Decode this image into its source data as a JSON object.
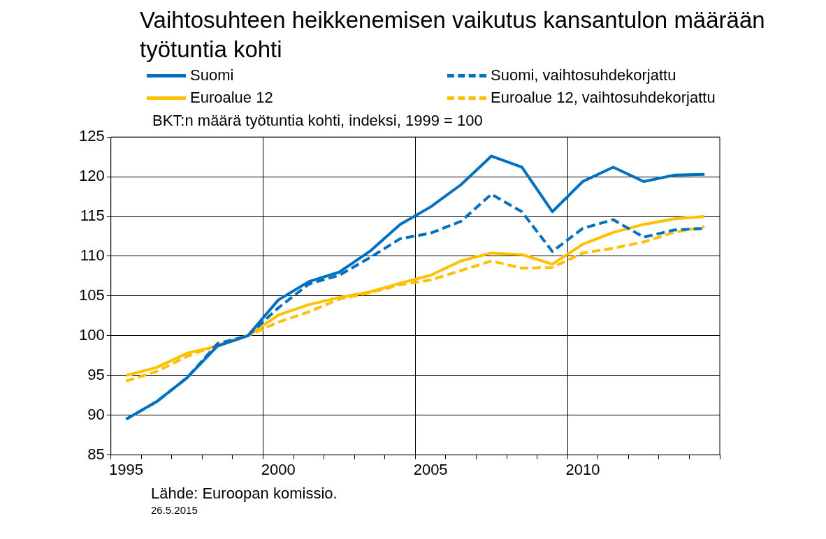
{
  "chart_data": {
    "type": "line",
    "title": "Vaihtosuhteen heikkenemisen vaikutus kansantulon määrään työtuntia kohti",
    "ylabel": "BKT:n määrä työtuntia kohti, indeksi, 1999 = 100",
    "categories": [
      "1995",
      null,
      null,
      null,
      null,
      "2000",
      null,
      null,
      null,
      null,
      "2005",
      null,
      null,
      null,
      null,
      "2010",
      null,
      null,
      null,
      null
    ],
    "series": [
      {
        "name": "Suomi",
        "color": "#0070c0",
        "line_style": "solid",
        "values": [
          89.5,
          91.7,
          94.7,
          98.7,
          100,
          104.5,
          106.8,
          108,
          110.6,
          114,
          116.2,
          119,
          122.6,
          121.2,
          115.6,
          119.4,
          121.2,
          119.4,
          120.2,
          120.3
        ]
      },
      {
        "name": "Suomi, vaihtosuhdekorjattu",
        "color": "#0070c0",
        "line_style": "dashed",
        "values": [
          89.5,
          91.7,
          94.7,
          99,
          100,
          103.5,
          106.5,
          107.6,
          109.8,
          112.2,
          112.9,
          114.4,
          117.8,
          115.6,
          110.6,
          113.5,
          114.6,
          112.4,
          113.3,
          113.5
        ]
      },
      {
        "name": "Euroalue 12",
        "color": "#ffc000",
        "line_style": "solid",
        "values": [
          95,
          96,
          97.8,
          98.7,
          100,
          102.6,
          103.9,
          104.8,
          105.5,
          106.6,
          107.6,
          109.4,
          110.4,
          110.2,
          109,
          111.5,
          113,
          114,
          114.7,
          115
        ]
      },
      {
        "name": "Euroalue 12, vaihtosuhdekorjattu",
        "color": "#ffc000",
        "line_style": "dashed",
        "values": [
          94.3,
          95.5,
          97.4,
          98.8,
          100,
          101.7,
          103,
          104.6,
          105.4,
          106.4,
          107,
          108.2,
          109.4,
          108.5,
          108.6,
          110.4,
          111,
          111.8,
          113,
          113.7
        ]
      }
    ],
    "ylim": [
      85,
      125
    ],
    "yticks": [
      85,
      90,
      95,
      100,
      105,
      110,
      115,
      120,
      125
    ],
    "grid": true,
    "legend": "top",
    "marker": "none",
    "annotations": [
      "Lähde: Euroopan komissio.",
      "26.5.2015"
    ]
  }
}
